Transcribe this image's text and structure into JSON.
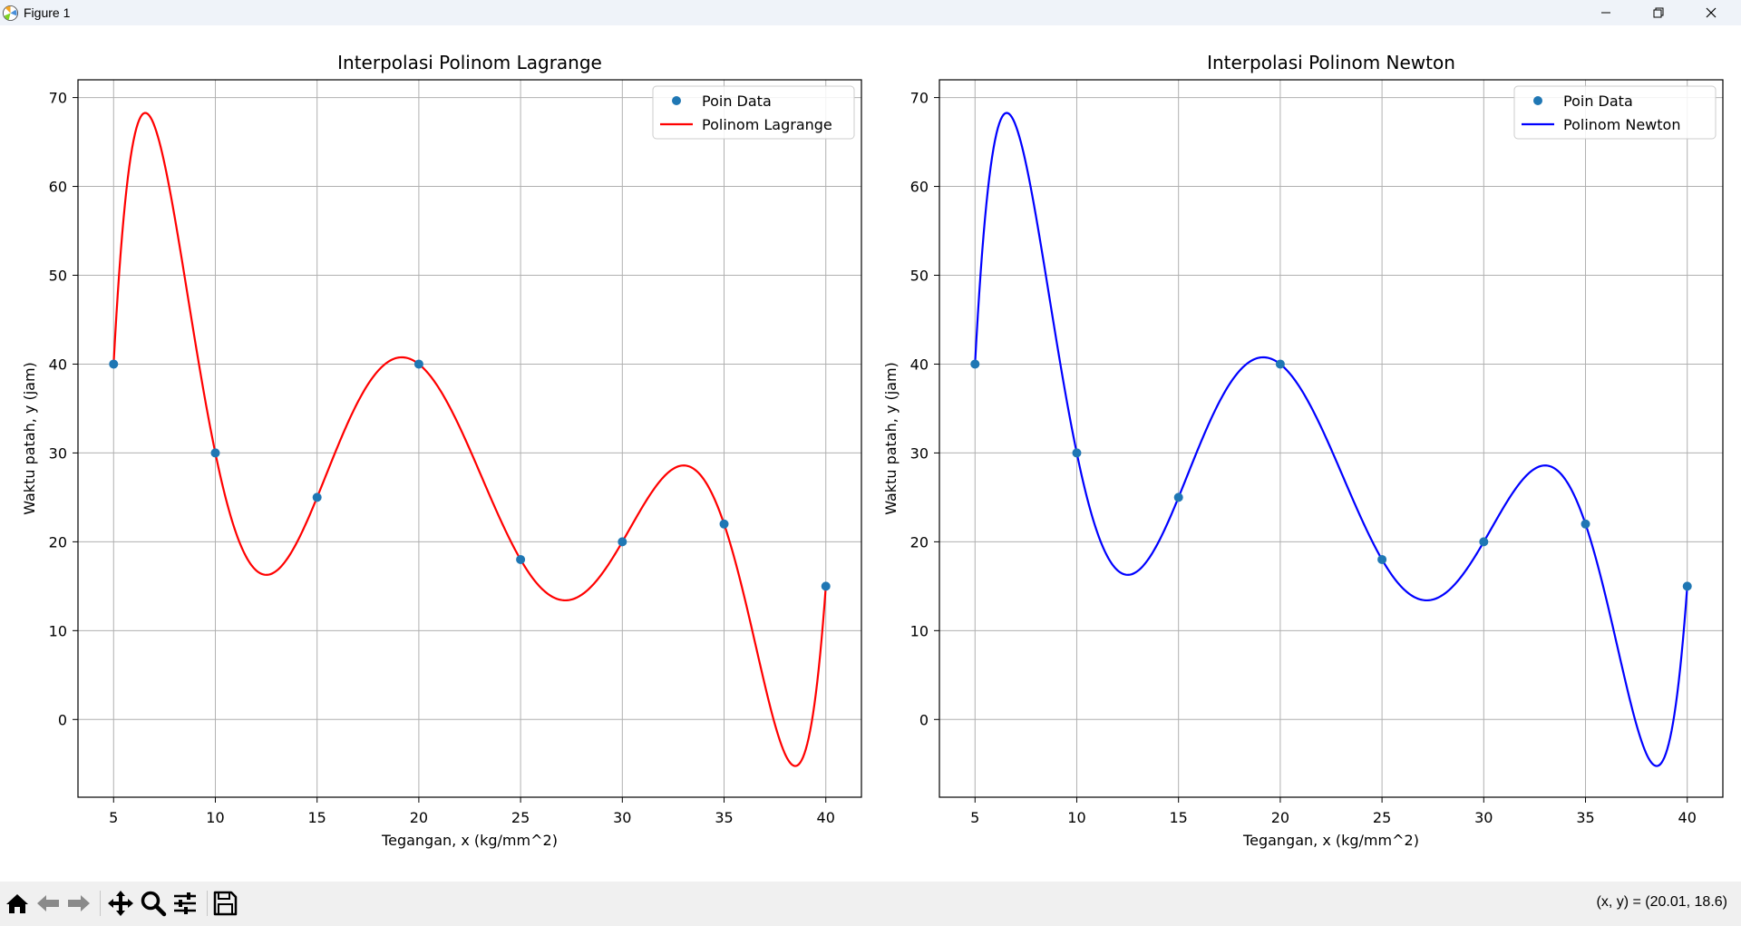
{
  "window": {
    "title": "Figure 1"
  },
  "toolbar": {
    "coords": "(x, y) = (20.01, 18.6)"
  },
  "chart_data": [
    {
      "type": "line",
      "title": "Interpolasi Polinom Lagrange",
      "xlabel": "Tegangan, x (kg/mm^2)",
      "ylabel": "Waktu patah, y (jam)",
      "xlim": [
        3.25,
        41.75
      ],
      "ylim": [
        -8.75,
        72
      ],
      "xticks": [
        5,
        10,
        15,
        20,
        25,
        30,
        35,
        40
      ],
      "yticks": [
        0,
        10,
        20,
        30,
        40,
        50,
        60,
        70
      ],
      "grid": true,
      "legend_position": "upper right",
      "points": {
        "name": "Poin Data",
        "color": "#1f77b4",
        "x": [
          5,
          10,
          15,
          20,
          25,
          30,
          35,
          40
        ],
        "y": [
          40,
          30,
          25,
          40,
          18,
          20,
          22,
          15
        ]
      },
      "curve": {
        "name": "Polinom Lagrange",
        "color": "#ff0000"
      }
    },
    {
      "type": "line",
      "title": "Interpolasi Polinom Newton",
      "xlabel": "Tegangan, x (kg/mm^2)",
      "ylabel": "Waktu patah, y (jam)",
      "xlim": [
        3.25,
        41.75
      ],
      "ylim": [
        -8.75,
        72
      ],
      "xticks": [
        5,
        10,
        15,
        20,
        25,
        30,
        35,
        40
      ],
      "yticks": [
        0,
        10,
        20,
        30,
        40,
        50,
        60,
        70
      ],
      "grid": true,
      "legend_position": "upper right",
      "points": {
        "name": "Poin Data",
        "color": "#1f77b4",
        "x": [
          5,
          10,
          15,
          20,
          25,
          30,
          35,
          40
        ],
        "y": [
          40,
          30,
          25,
          40,
          18,
          20,
          22,
          15
        ]
      },
      "curve": {
        "name": "Polinom Newton",
        "color": "#0000ff"
      }
    }
  ]
}
